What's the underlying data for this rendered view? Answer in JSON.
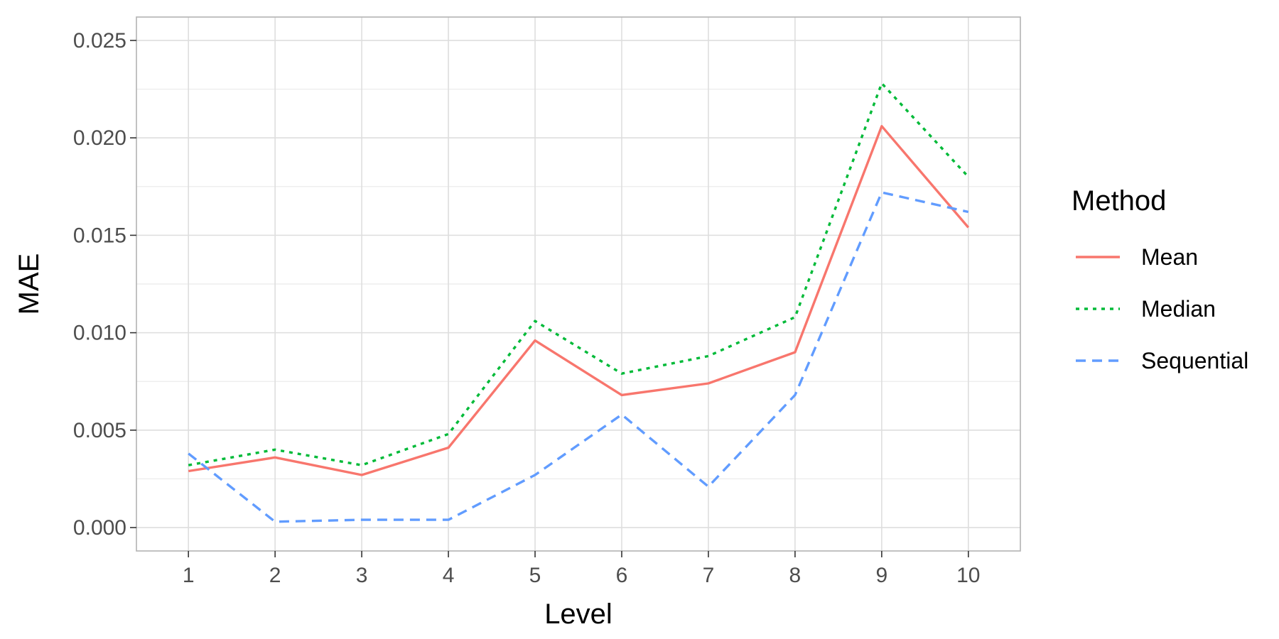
{
  "chart_data": {
    "type": "line",
    "xlabel": "Level",
    "ylabel": "MAE",
    "x": [
      1,
      2,
      3,
      4,
      5,
      6,
      7,
      8,
      9,
      10
    ],
    "xlim": [
      0.4,
      10.6
    ],
    "ylim": [
      -0.0012,
      0.0262
    ],
    "y_ticks": [
      0.0,
      0.005,
      0.01,
      0.015,
      0.02,
      0.025
    ],
    "y_tick_labels": [
      "0.000",
      "0.005",
      "0.010",
      "0.015",
      "0.020",
      "0.025"
    ],
    "x_tick_labels": [
      "1",
      "2",
      "3",
      "4",
      "5",
      "6",
      "7",
      "8",
      "9",
      "10"
    ],
    "grid": true,
    "legend": {
      "title": "Method",
      "position": "right"
    },
    "series": [
      {
        "name": "Mean",
        "color": "#F8766D",
        "linestyle": "solid",
        "values": [
          0.0029,
          0.0036,
          0.0027,
          0.0041,
          0.0096,
          0.0068,
          0.0074,
          0.009,
          0.0206,
          0.0154
        ]
      },
      {
        "name": "Median",
        "color": "#00BA38",
        "linestyle": "dotted",
        "values": [
          0.0032,
          0.004,
          0.0032,
          0.0048,
          0.0106,
          0.0079,
          0.0088,
          0.0108,
          0.0228,
          0.018
        ]
      },
      {
        "name": "Sequential",
        "color": "#619CFF",
        "linestyle": "dashed",
        "values": [
          0.0038,
          0.0003,
          0.0004,
          0.0004,
          0.0027,
          0.0058,
          0.0021,
          0.0068,
          0.0172,
          0.0162
        ]
      }
    ]
  }
}
